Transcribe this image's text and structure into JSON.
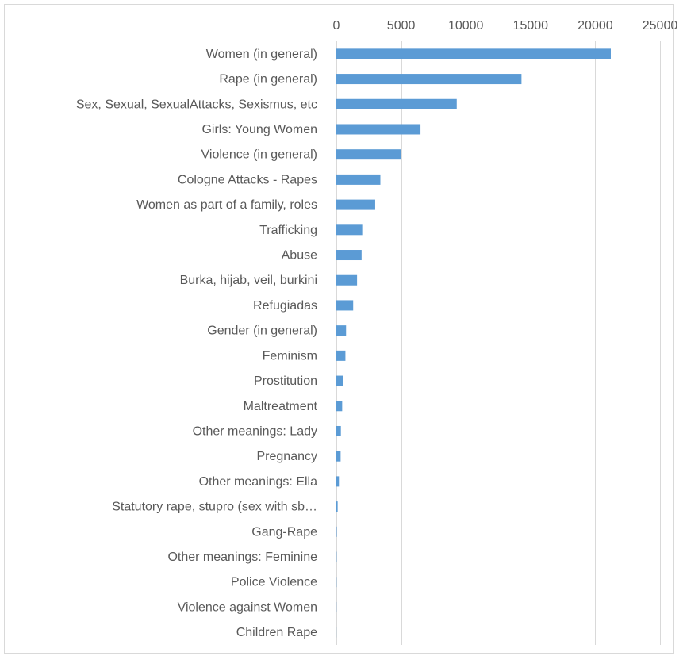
{
  "chart_data": {
    "type": "bar",
    "orientation": "horizontal",
    "categories": [
      "Women (in general)",
      "Rape (in general)",
      "Sex, Sexual, SexualAttacks, Sexismus, etc",
      "Girls: Young Women",
      "Violence (in general)",
      "Cologne Attacks - Rapes",
      "Women as part of a family, roles",
      "Trafficking",
      "Abuse",
      "Burka, hijab, veil, burkini",
      "Refugiadas",
      "Gender (in general)",
      "Feminism",
      "Prostitution",
      "Maltreatment",
      "Other meanings: Lady ",
      "Pregnancy",
      "Other meanings: Ella",
      "Statutory rape, stupro (sex with sb…",
      "Gang-Rape",
      "Other meanings: Feminine",
      "Police Violence",
      "Violence against Women",
      "Children Rape"
    ],
    "values": [
      21200,
      14300,
      9300,
      6500,
      5000,
      3400,
      3000,
      2000,
      1950,
      1600,
      1300,
      750,
      700,
      500,
      450,
      350,
      330,
      200,
      100,
      30,
      20,
      15,
      10,
      5
    ],
    "xlim": [
      0,
      25000
    ],
    "xticks": [
      "0",
      "5000",
      "10000",
      "15000",
      "20000",
      "25000"
    ],
    "xtick_values": [
      0,
      5000,
      10000,
      15000,
      20000,
      25000
    ],
    "title": "",
    "xlabel": "",
    "ylabel": "",
    "grid": true,
    "axis_position": "top",
    "bar_color": "#5b9bd5",
    "grid_color": "#d9d9d9",
    "text_color": "#595959"
  }
}
